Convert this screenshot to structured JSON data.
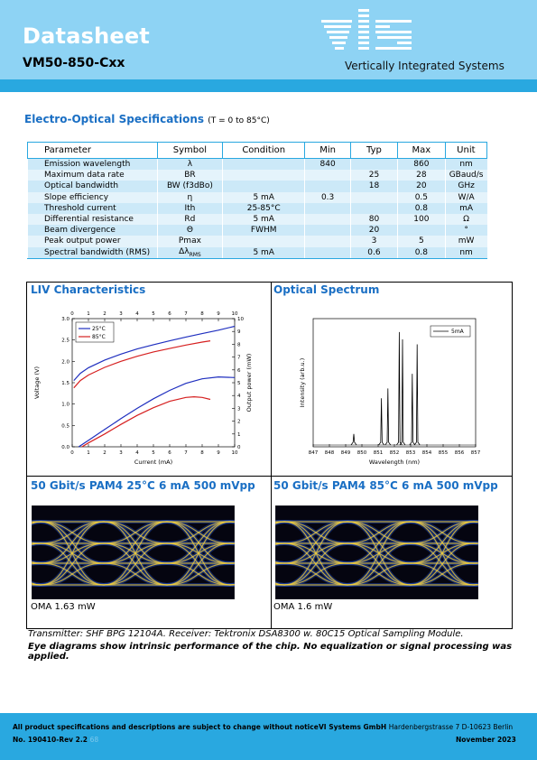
{
  "header": {
    "title": "Datasheet",
    "model": "VM50-850-Cxx",
    "company": "Vertically Integrated Systems",
    "logo_text": "ViS"
  },
  "specs": {
    "title": "Electro-Optical Specifications",
    "condition": "(T = 0 to 85°C)",
    "columns": [
      "Parameter",
      "Symbol",
      "Condition",
      "Min",
      "Typ",
      "Max",
      "Unit"
    ],
    "rows": [
      [
        "Emission wavelength",
        "λ",
        "",
        "840",
        "",
        "860",
        "nm"
      ],
      [
        "Maximum data rate",
        "BR",
        "",
        "",
        "25",
        "28",
        "GBaud/s"
      ],
      [
        "Optical bandwidth",
        "BW (f3dBo)",
        "",
        "",
        "18",
        "20",
        "GHz"
      ],
      [
        "Slope efficiency",
        "η",
        "5 mA",
        "0.3",
        "",
        "0.5",
        "W/A"
      ],
      [
        "Threshold current",
        "Ith",
        "25-85°C",
        "",
        "",
        "0.8",
        "mA"
      ],
      [
        "Differential resistance",
        "Rd",
        "5 mA",
        "",
        "80",
        "100",
        "Ω"
      ],
      [
        "Beam divergence",
        "Θ",
        "FWHM",
        "",
        "20",
        "",
        "°"
      ],
      [
        "Peak output power",
        "Pmax",
        "",
        "",
        "3",
        "5",
        "mW"
      ],
      [
        "Spectral bandwidth (RMS)",
        "ΔλRMS",
        "5 mA",
        "",
        "0.6",
        "0.8",
        "nm"
      ]
    ]
  },
  "liv": {
    "title": "LIV Characteristics",
    "chart_data": {
      "type": "line",
      "xlabel": "Current (mA)",
      "ylabel": "Voltage (V)",
      "y2label": "Output power (mW)",
      "xlim": [
        0,
        10
      ],
      "ylim": [
        0,
        3.0
      ],
      "y2lim": [
        0,
        10
      ],
      "xticks": [
        "0",
        "1",
        "2",
        "3",
        "4",
        "5",
        "6",
        "7",
        "8",
        "9",
        "10"
      ],
      "yticks": [
        "0.0",
        "0.5",
        "1.0",
        "1.5",
        "2.0",
        "2.5",
        "3.0"
      ],
      "y2ticks": [
        "0",
        "1",
        "2",
        "3",
        "4",
        "5",
        "6",
        "7",
        "8",
        "9",
        "10"
      ],
      "legend": [
        "25°C",
        "85°C"
      ],
      "series": [
        {
          "name": "25°C",
          "axis": "voltage",
          "color": "#1f2fbf",
          "x": [
            0.1,
            0.5,
            1,
            2,
            3,
            4,
            5,
            6,
            7,
            8,
            9,
            10
          ],
          "y": [
            1.55,
            1.72,
            1.85,
            2.03,
            2.17,
            2.29,
            2.39,
            2.48,
            2.57,
            2.65,
            2.73,
            2.82
          ]
        },
        {
          "name": "85°C",
          "axis": "voltage",
          "color": "#d62020",
          "x": [
            0.1,
            0.5,
            1,
            2,
            3,
            4,
            5,
            6,
            7,
            8,
            8.5
          ],
          "y": [
            1.38,
            1.55,
            1.68,
            1.86,
            2.0,
            2.12,
            2.22,
            2.3,
            2.38,
            2.45,
            2.48
          ]
        },
        {
          "name": "25°C",
          "axis": "power",
          "color": "#1f2fbf",
          "x": [
            0.4,
            1,
            2,
            3,
            4,
            5,
            6,
            7,
            8,
            9,
            10
          ],
          "y": [
            0,
            0.5,
            1.35,
            2.2,
            3.0,
            3.75,
            4.4,
            4.95,
            5.3,
            5.45,
            5.4
          ]
        },
        {
          "name": "85°C",
          "axis": "power",
          "color": "#d62020",
          "x": [
            0.6,
            1,
            2,
            3,
            4,
            5,
            6,
            7,
            7.5,
            8,
            8.5
          ],
          "y": [
            0,
            0.3,
            1.0,
            1.75,
            2.45,
            3.05,
            3.55,
            3.85,
            3.9,
            3.85,
            3.7
          ]
        }
      ]
    }
  },
  "spectrum": {
    "title": "Optical Spectrum",
    "chart_data": {
      "type": "line",
      "xlabel": "Wavelength (nm)",
      "ylabel": "Intensity (arb.u.)",
      "xlim": [
        847,
        857
      ],
      "xticks": [
        "847",
        "848",
        "849",
        "850",
        "851",
        "852",
        "853",
        "854",
        "855",
        "856",
        "857"
      ],
      "legend": [
        "5mA"
      ],
      "series": [
        {
          "name": "5mA",
          "color": "#000000",
          "peaks": [
            {
              "x": 849.5,
              "h": 0.09
            },
            {
              "x": 851.2,
              "h": 0.38
            },
            {
              "x": 851.6,
              "h": 0.46
            },
            {
              "x": 852.3,
              "h": 0.92
            },
            {
              "x": 852.5,
              "h": 0.86
            },
            {
              "x": 853.1,
              "h": 0.58
            },
            {
              "x": 853.4,
              "h": 0.82
            }
          ]
        }
      ]
    }
  },
  "eye1": {
    "title": "50 Gbit/s PAM4 25°C  6 mA  500 mVpp",
    "oma": "OMA 1.63 mW"
  },
  "eye2": {
    "title": "50 Gbit/s PAM4 85°C  6 mA  500 mVpp",
    "oma": "OMA 1.6 mW"
  },
  "notes": {
    "line1": "Transmitter: SHF BPG 12104A. Receiver: Tektronix DSA8300 w. 80C15 Optical Sampling Module.",
    "line2": "Eye diagrams show intrinsic performance of the chip. No equalization or signal processing was applied."
  },
  "footer": {
    "disclaimer": "All product specifications and descriptions are subject to change without notice",
    "doc_no": "No. 190410-Rev 2.2",
    "page": "68",
    "company": "VI Systems GmbH",
    "address": "Hardenbergstrasse 7 D-10623 Berlin",
    "date": "November 2023"
  },
  "colors": {
    "header_light": "#8ed3f4",
    "header_dark": "#29a8e0",
    "title_blue": "#1a6fc4",
    "eye_yellow": "#f5d03a",
    "eye_blue": "#1d3f9e"
  }
}
